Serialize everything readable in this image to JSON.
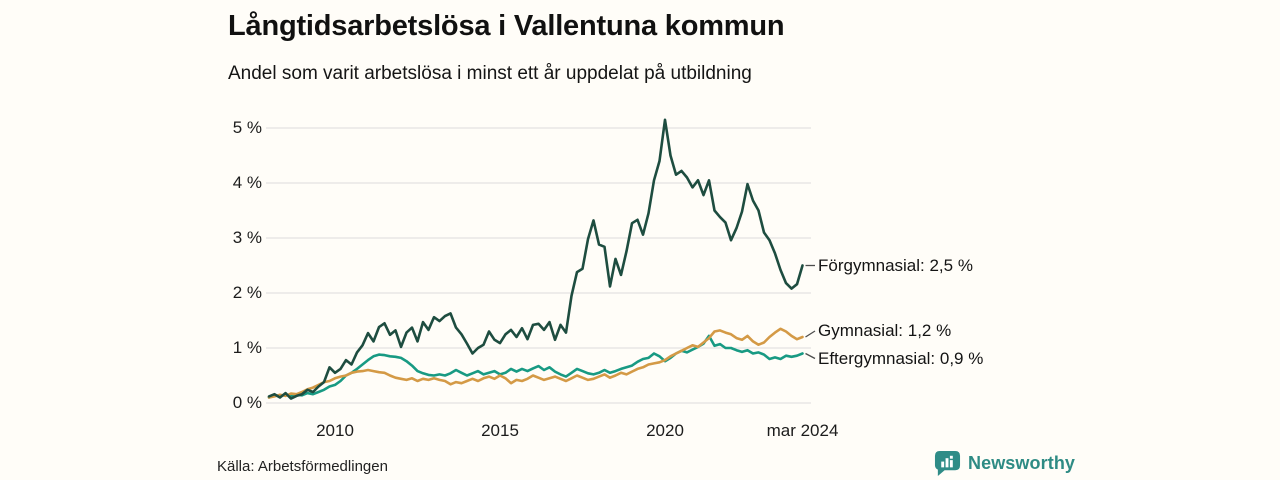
{
  "header": {
    "title": "Långtidsarbetslösa i Vallentuna kommun",
    "subtitle": "Andel som varit arbetslösa i minst ett år uppdelat på utbildning"
  },
  "footer": {
    "source": "Källa: Arbetsförmedlingen",
    "brand": "Newsworthy"
  },
  "colors": {
    "forgymnasial": "#1e4d40",
    "gymnasial": "#d49a46",
    "eftergymnasial": "#189a83",
    "grid": "#dcdcdc",
    "connector": "#4d4d4d",
    "brand_teal": "#2e8b84",
    "background": "#fffdf8"
  },
  "chart_data": {
    "type": "line",
    "title": "Långtidsarbetslösa i Vallentuna kommun",
    "subtitle": "Andel som varit arbetslösa i minst ett år uppdelat på utbildning",
    "unit": "%",
    "grid": true,
    "legend_position": "right-of-line-ends",
    "xlim": [
      2008,
      2024.5
    ],
    "ylim": [
      0,
      5.4
    ],
    "x_start": 2008.0,
    "x_step": 0.1666667,
    "x_ticks": [
      {
        "value": 2010,
        "label": "2010"
      },
      {
        "value": 2015,
        "label": "2015"
      },
      {
        "value": 2020,
        "label": "2020"
      },
      {
        "value": 2024.1667,
        "label": "mar 2024"
      }
    ],
    "y_ticks": [
      {
        "value": 0,
        "label": "0 %"
      },
      {
        "value": 1,
        "label": "1 %"
      },
      {
        "value": 2,
        "label": "2 %"
      },
      {
        "value": 3,
        "label": "3 %"
      },
      {
        "value": 4,
        "label": "4 %"
      },
      {
        "value": 5,
        "label": "5 %"
      }
    ],
    "series": [
      {
        "name": "Förgymnasial",
        "end_label": "Förgymnasial: 2,5 %",
        "end_value_text": "2,5 %",
        "color": "#1e4d40",
        "values": [
          0.12,
          0.16,
          0.1,
          0.18,
          0.08,
          0.13,
          0.16,
          0.24,
          0.2,
          0.3,
          0.38,
          0.65,
          0.55,
          0.62,
          0.78,
          0.7,
          0.92,
          1.05,
          1.27,
          1.12,
          1.38,
          1.45,
          1.24,
          1.32,
          1.02,
          1.28,
          1.37,
          1.12,
          1.47,
          1.33,
          1.56,
          1.49,
          1.58,
          1.63,
          1.37,
          1.25,
          1.08,
          0.9,
          1.0,
          1.06,
          1.3,
          1.15,
          1.09,
          1.25,
          1.33,
          1.2,
          1.36,
          1.16,
          1.42,
          1.44,
          1.33,
          1.47,
          1.15,
          1.42,
          1.28,
          1.95,
          2.38,
          2.44,
          2.98,
          3.32,
          2.88,
          2.84,
          2.12,
          2.62,
          2.33,
          2.76,
          3.27,
          3.33,
          3.06,
          3.45,
          4.05,
          4.4,
          5.15,
          4.5,
          4.15,
          4.22,
          4.1,
          3.92,
          4.05,
          3.78,
          4.05,
          3.5,
          3.38,
          3.28,
          2.96,
          3.18,
          3.48,
          3.98,
          3.68,
          3.5,
          3.1,
          2.96,
          2.72,
          2.42,
          2.18,
          2.08,
          2.16,
          2.5
        ]
      },
      {
        "name": "Gymnasial",
        "end_label": "Gymnasial: 1,2 %",
        "end_value_text": "1,2 %",
        "color": "#d49a46",
        "values": [
          0.1,
          0.12,
          0.15,
          0.13,
          0.17,
          0.16,
          0.2,
          0.25,
          0.28,
          0.33,
          0.38,
          0.4,
          0.45,
          0.48,
          0.5,
          0.55,
          0.57,
          0.58,
          0.6,
          0.58,
          0.56,
          0.55,
          0.5,
          0.46,
          0.44,
          0.42,
          0.45,
          0.4,
          0.44,
          0.42,
          0.45,
          0.42,
          0.4,
          0.34,
          0.38,
          0.36,
          0.4,
          0.44,
          0.4,
          0.45,
          0.48,
          0.44,
          0.5,
          0.45,
          0.36,
          0.42,
          0.4,
          0.44,
          0.5,
          0.46,
          0.42,
          0.45,
          0.48,
          0.44,
          0.4,
          0.45,
          0.5,
          0.46,
          0.42,
          0.44,
          0.48,
          0.52,
          0.46,
          0.5,
          0.55,
          0.52,
          0.57,
          0.62,
          0.65,
          0.7,
          0.72,
          0.74,
          0.78,
          0.85,
          0.9,
          0.95,
          1.0,
          1.05,
          1.02,
          1.1,
          1.18,
          1.3,
          1.32,
          1.28,
          1.25,
          1.18,
          1.15,
          1.22,
          1.12,
          1.06,
          1.1,
          1.2,
          1.28,
          1.35,
          1.3,
          1.22,
          1.16,
          1.2
        ]
      },
      {
        "name": "Eftergymnasial",
        "end_label": "Eftergymnasial: 0,9 %",
        "end_value_text": "0,9 %",
        "color": "#189a83",
        "values": [
          0.1,
          0.14,
          0.12,
          0.16,
          0.12,
          0.15,
          0.14,
          0.18,
          0.16,
          0.2,
          0.24,
          0.3,
          0.33,
          0.4,
          0.5,
          0.55,
          0.62,
          0.7,
          0.78,
          0.85,
          0.88,
          0.87,
          0.85,
          0.84,
          0.82,
          0.76,
          0.68,
          0.58,
          0.54,
          0.51,
          0.5,
          0.52,
          0.5,
          0.54,
          0.6,
          0.55,
          0.5,
          0.54,
          0.58,
          0.52,
          0.55,
          0.58,
          0.52,
          0.55,
          0.62,
          0.57,
          0.62,
          0.58,
          0.63,
          0.67,
          0.6,
          0.65,
          0.57,
          0.52,
          0.48,
          0.55,
          0.62,
          0.58,
          0.54,
          0.52,
          0.55,
          0.6,
          0.55,
          0.58,
          0.62,
          0.65,
          0.68,
          0.75,
          0.8,
          0.82,
          0.9,
          0.85,
          0.76,
          0.82,
          0.9,
          0.95,
          0.92,
          0.97,
          1.02,
          1.08,
          1.22,
          1.04,
          1.07,
          1.0,
          1.0,
          0.96,
          0.93,
          0.96,
          0.9,
          0.92,
          0.88,
          0.8,
          0.83,
          0.8,
          0.86,
          0.84,
          0.86,
          0.9
        ]
      }
    ]
  }
}
